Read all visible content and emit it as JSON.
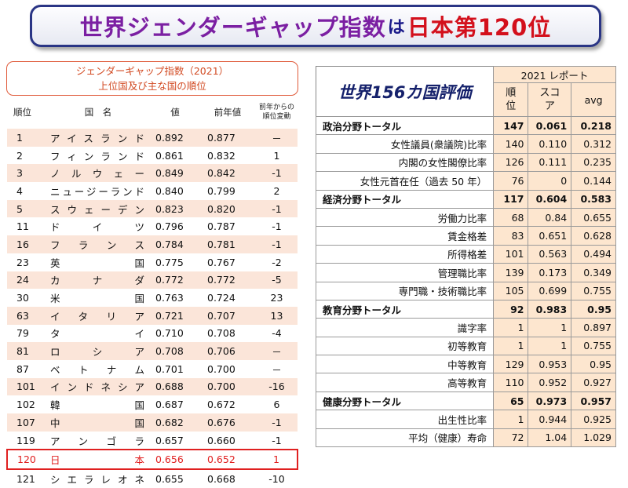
{
  "title": {
    "part1": "世界ジェンダーギャップ指数",
    "part2": "は",
    "part3": "日本第120位"
  },
  "left_table": {
    "heading_line1": "ジェンダーギャップ指数（2021）",
    "heading_line2": "上位国及び主な国の順位",
    "columns": {
      "rank": "順位",
      "country": "国　名",
      "value": "値",
      "prev": "前年値",
      "change_line1": "前年からの",
      "change_line2": "順位変動"
    },
    "rows": [
      {
        "rank": "1",
        "country": "アイスランド",
        "value": "0.892",
        "prev": "0.877",
        "change": "－"
      },
      {
        "rank": "2",
        "country": "フィンランド",
        "value": "0.861",
        "prev": "0.832",
        "change": "1"
      },
      {
        "rank": "3",
        "country": "ノルウェー",
        "value": "0.849",
        "prev": "0.842",
        "change": "-1"
      },
      {
        "rank": "4",
        "country": "ニュージーランド",
        "value": "0.840",
        "prev": "0.799",
        "change": "2"
      },
      {
        "rank": "5",
        "country": "スウェーデン",
        "value": "0.823",
        "prev": "0.820",
        "change": "-1"
      },
      {
        "rank": "11",
        "country": "ドイツ",
        "value": "0.796",
        "prev": "0.787",
        "change": "-1"
      },
      {
        "rank": "16",
        "country": "フランス",
        "value": "0.784",
        "prev": "0.781",
        "change": "-1"
      },
      {
        "rank": "23",
        "country": "英国",
        "value": "0.775",
        "prev": "0.767",
        "change": "-2"
      },
      {
        "rank": "24",
        "country": "カナダ",
        "value": "0.772",
        "prev": "0.772",
        "change": "-5"
      },
      {
        "rank": "30",
        "country": "米国",
        "value": "0.763",
        "prev": "0.724",
        "change": "23"
      },
      {
        "rank": "63",
        "country": "イタリア",
        "value": "0.721",
        "prev": "0.707",
        "change": "13"
      },
      {
        "rank": "79",
        "country": "タイ",
        "value": "0.710",
        "prev": "0.708",
        "change": "-4"
      },
      {
        "rank": "81",
        "country": "ロシア",
        "value": "0.708",
        "prev": "0.706",
        "change": "－"
      },
      {
        "rank": "87",
        "country": "ベトナム",
        "value": "0.701",
        "prev": "0.700",
        "change": "－"
      },
      {
        "rank": "101",
        "country": "インドネシア",
        "value": "0.688",
        "prev": "0.700",
        "change": "-16"
      },
      {
        "rank": "102",
        "country": "韓国",
        "value": "0.687",
        "prev": "0.672",
        "change": "6"
      },
      {
        "rank": "107",
        "country": "中国",
        "value": "0.682",
        "prev": "0.676",
        "change": "-1"
      },
      {
        "rank": "119",
        "country": "アンゴラ",
        "value": "0.657",
        "prev": "0.660",
        "change": "-1"
      },
      {
        "rank": "120",
        "country": "日本",
        "value": "0.656",
        "prev": "0.652",
        "change": "1"
      },
      {
        "rank": "121",
        "country": "シエラレオネ",
        "value": "0.655",
        "prev": "0.668",
        "change": "-10"
      }
    ]
  },
  "right_table": {
    "title": "世界156カ国評価",
    "report_label": "2021 レポート",
    "col_rank": "順位",
    "col_score": "スコア",
    "col_avg": "avg",
    "rows": [
      {
        "label": "政治分野トータル",
        "rank": "147",
        "score": "0.061",
        "avg": "0.218",
        "total": true
      },
      {
        "label": "女性議員(衆議院)比率",
        "rank": "140",
        "score": "0.110",
        "avg": "0.312",
        "total": false
      },
      {
        "label": "内閣の女性閣僚比率",
        "rank": "126",
        "score": "0.111",
        "avg": "0.235",
        "total": false
      },
      {
        "label": "女性元首在任（過去 50 年）",
        "rank": "76",
        "score": "0",
        "avg": "0.144",
        "total": false
      },
      {
        "label": "経済分野トータル",
        "rank": "117",
        "score": "0.604",
        "avg": "0.583",
        "total": true
      },
      {
        "label": "労働力比率",
        "rank": "68",
        "score": "0.84",
        "avg": "0.655",
        "total": false
      },
      {
        "label": "賃金格差",
        "rank": "83",
        "score": "0.651",
        "avg": "0.628",
        "total": false
      },
      {
        "label": "所得格差",
        "rank": "101",
        "score": "0.563",
        "avg": "0.494",
        "total": false
      },
      {
        "label": "管理職比率",
        "rank": "139",
        "score": "0.173",
        "avg": "0.349",
        "total": false
      },
      {
        "label": "専門職・技術職比率",
        "rank": "105",
        "score": "0.699",
        "avg": "0.755",
        "total": false
      },
      {
        "label": "教育分野トータル",
        "rank": "92",
        "score": "0.983",
        "avg": "0.95",
        "total": true
      },
      {
        "label": "識字率",
        "rank": "1",
        "score": "1",
        "avg": "0.897",
        "total": false
      },
      {
        "label": "初等教育",
        "rank": "1",
        "score": "1",
        "avg": "0.755",
        "total": false
      },
      {
        "label": "中等教育",
        "rank": "129",
        "score": "0.953",
        "avg": "0.95",
        "total": false
      },
      {
        "label": "高等教育",
        "rank": "110",
        "score": "0.952",
        "avg": "0.927",
        "total": false
      },
      {
        "label": "健康分野トータル",
        "rank": "65",
        "score": "0.973",
        "avg": "0.957",
        "total": true
      },
      {
        "label": "出生性比率",
        "rank": "1",
        "score": "0.944",
        "avg": "0.925",
        "total": false
      },
      {
        "label": "平均（健康）寿命",
        "rank": "72",
        "score": "1.04",
        "avg": "1.029",
        "total": false
      }
    ]
  },
  "colors": {
    "title_purple": "#7b1fa2",
    "title_red": "#d3101c",
    "banner_border": "#2a3585",
    "row_stripe": "#fbe5d9",
    "japan_highlight": "#e02020",
    "score_cell_bg": "#fde6cf"
  }
}
